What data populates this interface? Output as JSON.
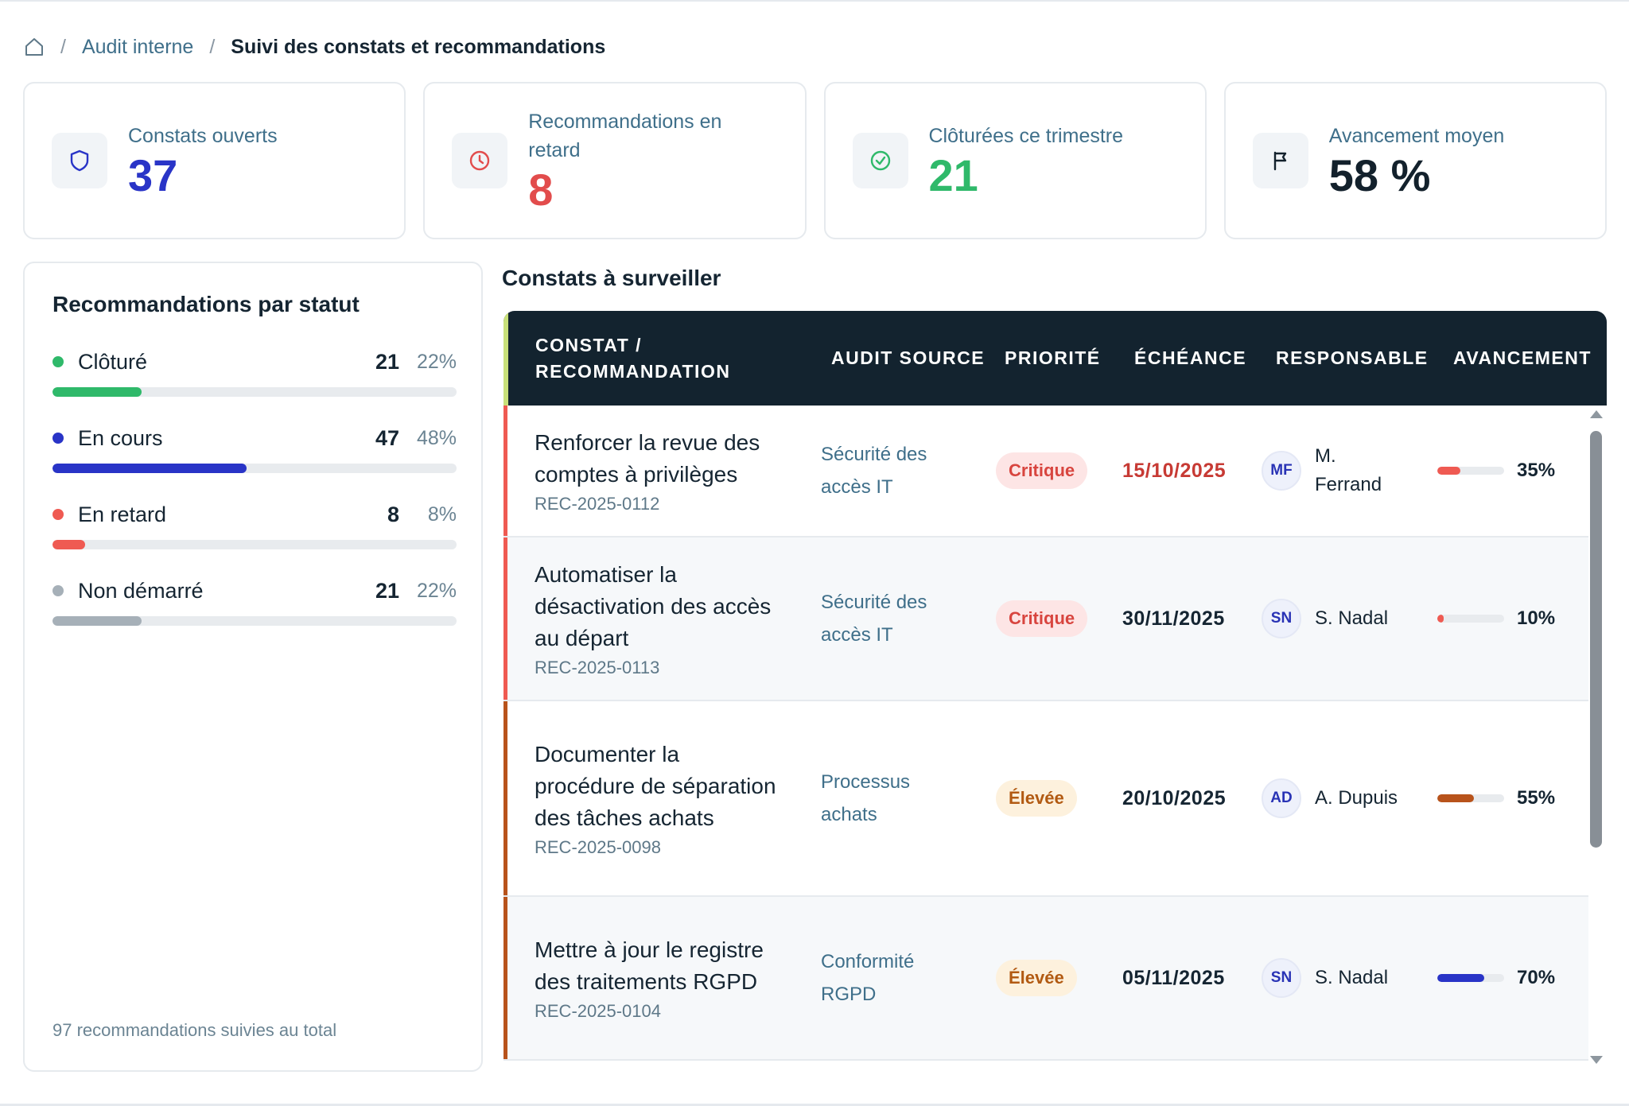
{
  "breadcrumb": {
    "home_icon": "home-icon",
    "items": [
      {
        "label": "Audit interne"
      },
      {
        "label": "Suivi des constats et recommandations"
      }
    ]
  },
  "kpis": [
    {
      "icon": "shield-icon",
      "label": "Constats ouverts",
      "value": "37",
      "color": "#2934c7"
    },
    {
      "icon": "clock-icon",
      "label": "Recommandations en retard",
      "value": "8",
      "color": "#e24c4c"
    },
    {
      "icon": "check-circle-icon",
      "label": "Clôturées ce trimestre",
      "value": "21",
      "color": "#2fb96a"
    },
    {
      "icon": "flag-icon",
      "label": "Avancement moyen",
      "value": "58 %",
      "color": "#13212c"
    }
  ],
  "status_panel": {
    "title": "Recommandations par statut",
    "items": [
      {
        "name": "Clôturé",
        "count": "21",
        "pct": "22%",
        "fraction": 0.22,
        "color": "#2fb96a"
      },
      {
        "name": "En cours",
        "count": "47",
        "pct": "48%",
        "fraction": 0.48,
        "color": "#2934c7"
      },
      {
        "name": "En retard",
        "count": "8",
        "pct": "8%",
        "fraction": 0.08,
        "color": "#ef5a52"
      },
      {
        "name": "Non démarré",
        "count": "21",
        "pct": "22%",
        "fraction": 0.22,
        "color": "#a6b0b8"
      }
    ],
    "footer": "97 recommandations suivies au total"
  },
  "table": {
    "title": "Constats à surveiller",
    "headers": [
      "Constat / recommandation",
      "Audit source",
      "Priorité",
      "Échéance",
      "Responsable",
      "Avancement"
    ],
    "rows": [
      {
        "title": "Renforcer la revue des comptes à privilèges",
        "id": "REC-2025-0112",
        "source": "Sécurité des accès IT",
        "priority": "Critique",
        "priority_level": "critical",
        "due": "15/10/2025",
        "due_late": true,
        "initials": "MF",
        "owner": "M. Ferrand",
        "progress": "35%",
        "progress_value": 0.35,
        "bar_color": "#ef5a52",
        "accent": "#ef5a52"
      },
      {
        "title": "Automatiser la désactivation des accès au départ",
        "id": "REC-2025-0113",
        "source": "Sécurité des accès IT",
        "priority": "Critique",
        "priority_level": "critical",
        "due": "30/11/2025",
        "due_late": false,
        "initials": "SN",
        "owner": "S. Nadal",
        "progress": "10%",
        "progress_value": 0.1,
        "bar_color": "#ef5a52",
        "accent": "#ef5a52"
      },
      {
        "title": "Documenter la procédure de séparation des tâches achats",
        "id": "REC-2025-0098",
        "source": "Processus achats",
        "priority": "Élevée",
        "priority_level": "high",
        "due": "20/10/2025",
        "due_late": false,
        "initials": "AD",
        "owner": "A. Dupuis",
        "progress": "55%",
        "progress_value": 0.55,
        "bar_color": "#b8531b",
        "accent": "#b8531b"
      },
      {
        "title": "Mettre à jour le registre des traitements RGPD",
        "id": "REC-2025-0104",
        "source": "Conformité RGPD",
        "priority": "Élevée",
        "priority_level": "high",
        "due": "05/11/2025",
        "due_late": false,
        "initials": "SN",
        "owner": "S. Nadal",
        "progress": "70%",
        "progress_value": 0.7,
        "bar_color": "#2934c7",
        "accent": "#b8531b"
      }
    ]
  }
}
